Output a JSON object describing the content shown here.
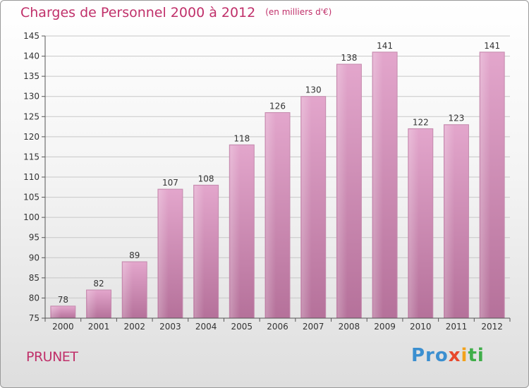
{
  "title": "Charges de Personnel 2000 à 2012",
  "subtitle": "(en milliers d'€)",
  "commune": "PRUNET",
  "logo": {
    "p1": "Pro",
    "p2": "x",
    "p3": "i",
    "p4": "ti"
  },
  "colors": {
    "title": "#c0306a",
    "bar_top": "#e3a6cc",
    "bar_bottom": "#b5719a"
  },
  "chart_data": {
    "type": "bar",
    "title": "Charges de Personnel 2000 à 2012",
    "categories": [
      "2000",
      "2001",
      "2002",
      "2003",
      "2004",
      "2005",
      "2006",
      "2007",
      "2008",
      "2009",
      "2010",
      "2011",
      "2012"
    ],
    "values": [
      78,
      82,
      89,
      107,
      108,
      118,
      126,
      130,
      138,
      141,
      122,
      123,
      141
    ],
    "ylim": [
      75,
      145
    ],
    "yticks": [
      75,
      80,
      85,
      90,
      95,
      100,
      105,
      110,
      115,
      120,
      125,
      130,
      135,
      140,
      145
    ],
    "grid": true,
    "xlabel": "",
    "ylabel": ""
  }
}
